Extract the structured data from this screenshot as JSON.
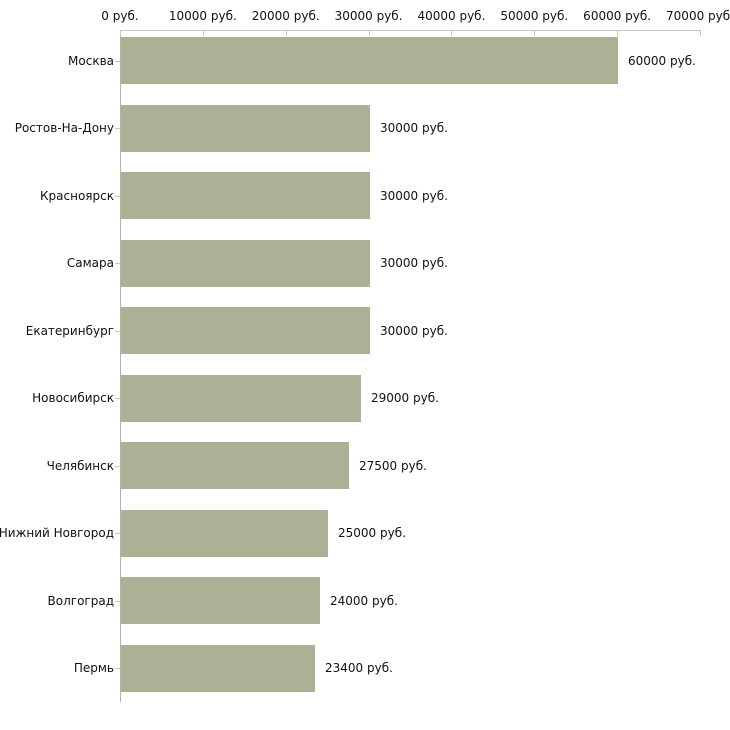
{
  "chart_data": {
    "type": "bar",
    "orientation": "horizontal",
    "title": "",
    "xlabel": "",
    "ylabel": "",
    "categories": [
      "Москва",
      "Ростов-На-Дону",
      "Красноярск",
      "Самара",
      "Екатеринбург",
      "Новосибирск",
      "Челябинск",
      "Нижний Новгород",
      "Волгоград",
      "Пермь"
    ],
    "values": [
      60000,
      30000,
      30000,
      30000,
      30000,
      29000,
      27500,
      25000,
      24000,
      23400
    ],
    "value_labels": [
      "60000 руб.",
      "30000 руб.",
      "30000 руб.",
      "30000 руб.",
      "30000 руб.",
      "29000 руб.",
      "27500 руб.",
      "25000 руб.",
      "24000 руб.",
      "23400 руб."
    ],
    "x_tick_values": [
      0,
      10000,
      20000,
      30000,
      40000,
      50000,
      60000,
      70000
    ],
    "x_tick_labels": [
      "0 руб.",
      "10000 руб.",
      "20000 руб.",
      "30000 руб.",
      "40000 руб.",
      "50000 руб.",
      "60000 руб.",
      "70000 руб."
    ],
    "xlim": [
      0,
      70000
    ],
    "grid": false,
    "legend": "none",
    "colors": {
      "bar_fill": "#acb196",
      "x_axis_line": "#c9c9c2",
      "y_axis_line": "#b1b1b1",
      "tick_mark": "#cccc99",
      "text": "#111111",
      "background": "#ffffff"
    }
  }
}
